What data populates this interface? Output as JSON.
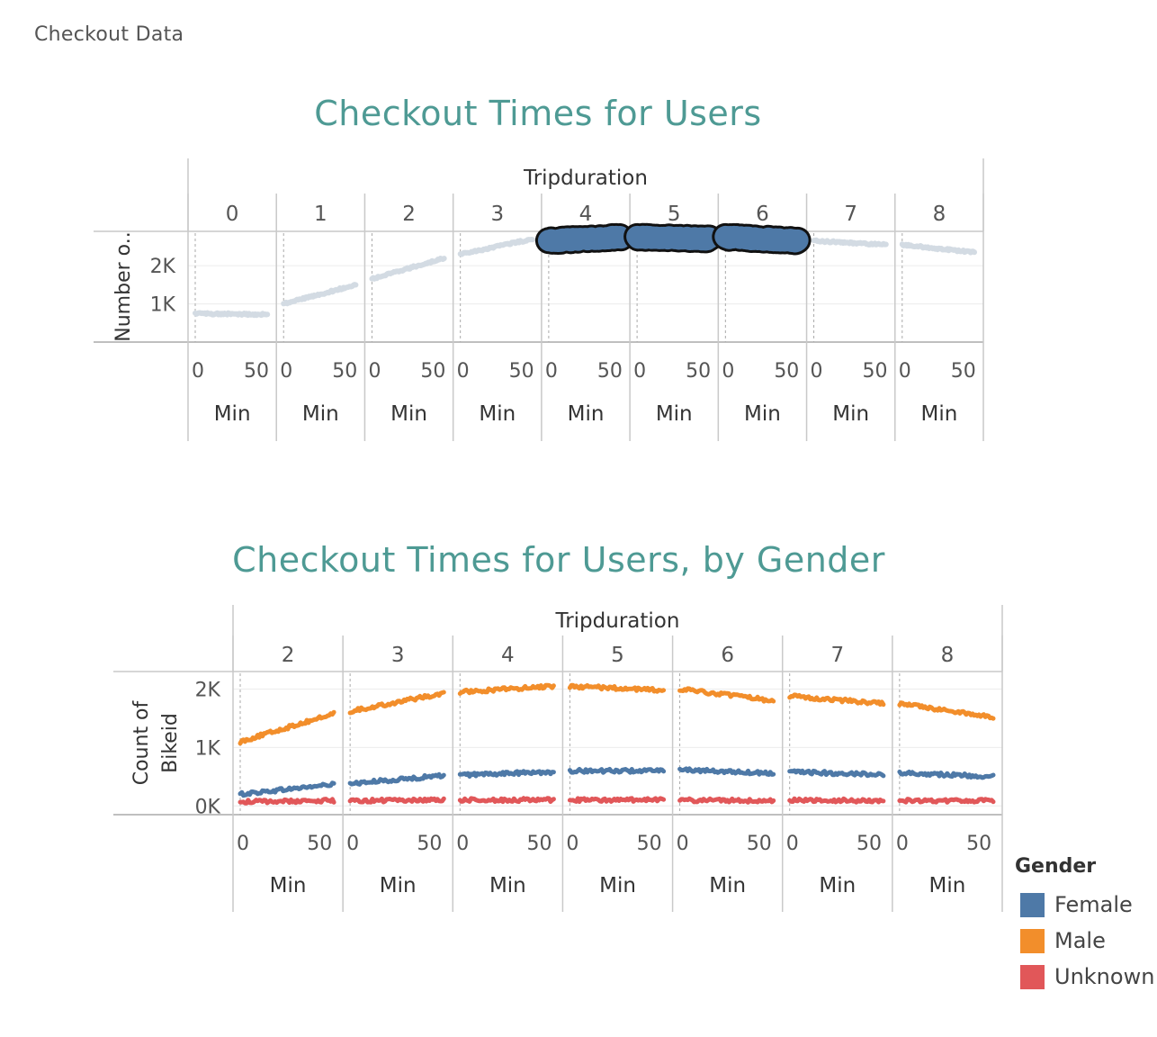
{
  "sheet_title": "Checkout Data",
  "colors": {
    "title": "#4e9a94",
    "female": "#4e79a7",
    "male": "#f28e2b",
    "unknown": "#e15759",
    "dimmed": "#d3dbe3",
    "highlight_outline": "#111111"
  },
  "chart_data": [
    {
      "type": "line",
      "title": "Checkout Times for Users",
      "column_header": "Tripduration",
      "panels": [
        "0",
        "1",
        "2",
        "3",
        "4",
        "5",
        "6",
        "7",
        "8"
      ],
      "x_tick_labels": [
        "0",
        "50"
      ],
      "x_axis_label": "Min",
      "x_range": [
        0,
        59
      ],
      "ylabel": "Number o..",
      "y_tick_labels": [
        "1K",
        "2K"
      ],
      "y_ticks": [
        1000,
        2000
      ],
      "ylim": [
        0,
        2900
      ],
      "highlighted_panels": [
        "4",
        "5",
        "6"
      ],
      "series": [
        {
          "name": "Number of Records",
          "panel_ranges": [
            [
              750,
              720
            ],
            [
              1000,
              1500
            ],
            [
              1650,
              2200
            ],
            [
              2300,
              2700
            ],
            [
              2650,
              2750
            ],
            [
              2750,
              2700
            ],
            [
              2750,
              2650
            ],
            [
              2650,
              2550
            ],
            [
              2550,
              2350
            ]
          ]
        }
      ]
    },
    {
      "type": "line",
      "title": "Checkout Times for Users, by Gender",
      "column_header": "Tripduration",
      "panels": [
        "2",
        "3",
        "4",
        "5",
        "6",
        "7",
        "8"
      ],
      "x_tick_labels": [
        "0",
        "50"
      ],
      "x_axis_label": "Min",
      "x_range": [
        0,
        59
      ],
      "ylabel_lines": [
        "Count of",
        "Bikeid"
      ],
      "y_tick_labels": [
        "0K",
        "1K",
        "2K"
      ],
      "y_ticks": [
        0,
        1000,
        2000
      ],
      "ylim": [
        -150,
        2300
      ],
      "legend_title": "Gender",
      "series": [
        {
          "name": "Female",
          "panel_ranges": [
            [
              200,
              370
            ],
            [
              380,
              520
            ],
            [
              530,
              580
            ],
            [
              600,
              600
            ],
            [
              620,
              560
            ],
            [
              580,
              540
            ],
            [
              570,
              500
            ]
          ]
        },
        {
          "name": "Male",
          "panel_ranges": [
            [
              1100,
              1580
            ],
            [
              1620,
              1930
            ],
            [
              1950,
              2050
            ],
            [
              2050,
              1980
            ],
            [
              2000,
              1800
            ],
            [
              1880,
              1750
            ],
            [
              1750,
              1520
            ]
          ]
        },
        {
          "name": "Unknown",
          "panel_ranges": [
            [
              70,
              90
            ],
            [
              90,
              100
            ],
            [
              100,
              100
            ],
            [
              100,
              100
            ],
            [
              95,
              90
            ],
            [
              95,
              90
            ],
            [
              90,
              85
            ]
          ]
        }
      ]
    }
  ]
}
